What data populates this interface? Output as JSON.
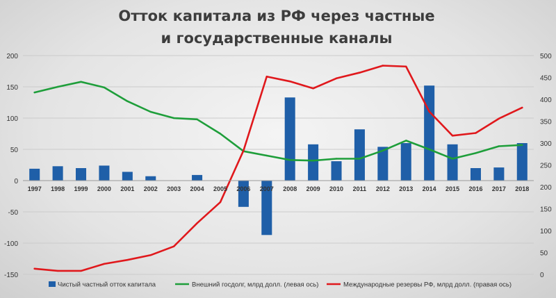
{
  "chart_data": {
    "type": "bar+line",
    "title_lines": [
      "Отток капитала из РФ через частные",
      "и государственные каналы"
    ],
    "categories": [
      "1997",
      "1998",
      "1999",
      "2000",
      "2001",
      "2002",
      "2003",
      "2004",
      "2005",
      "2006",
      "2007",
      "2008",
      "2009",
      "2010",
      "2011",
      "2012",
      "2013",
      "2014",
      "2015",
      "2016",
      "2017",
      "2018"
    ],
    "left_axis": {
      "min": -150,
      "max": 200,
      "ticks": [
        -150,
        -100,
        -50,
        0,
        50,
        100,
        150,
        200
      ]
    },
    "right_axis": {
      "min": 0,
      "max": 500,
      "ticks": [
        0,
        50,
        100,
        150,
        200,
        250,
        300,
        350,
        400,
        450,
        500
      ]
    },
    "grid": true,
    "legend_position": "bottom",
    "series": [
      {
        "name": "Чистый частный отток капитала",
        "type": "bar",
        "axis": "left",
        "color": "#1f5fa8",
        "values": [
          19,
          23,
          20,
          24,
          14,
          7,
          0,
          9,
          0,
          -42,
          -87,
          133,
          58,
          31,
          82,
          54,
          60,
          152,
          58,
          20,
          21,
          60
        ]
      },
      {
        "name": "Внешний госдолг, млрд долл. (левая ось)",
        "type": "line",
        "axis": "left",
        "color": "#1e9e3a",
        "values": [
          141,
          150,
          158,
          149,
          127,
          110,
          100,
          98,
          75,
          47,
          40,
          33,
          32,
          35,
          35,
          48,
          64,
          50,
          35,
          44,
          55,
          57
        ]
      },
      {
        "name": "Международные резервы РФ, млрд долл. (правая ось)",
        "type": "line",
        "axis": "right",
        "color": "#e0181c",
        "values": [
          13,
          8,
          8,
          24,
          33,
          44,
          64,
          117,
          165,
          283,
          452,
          441,
          425,
          448,
          461,
          477,
          475,
          372,
          317,
          323,
          356,
          381
        ]
      }
    ]
  }
}
